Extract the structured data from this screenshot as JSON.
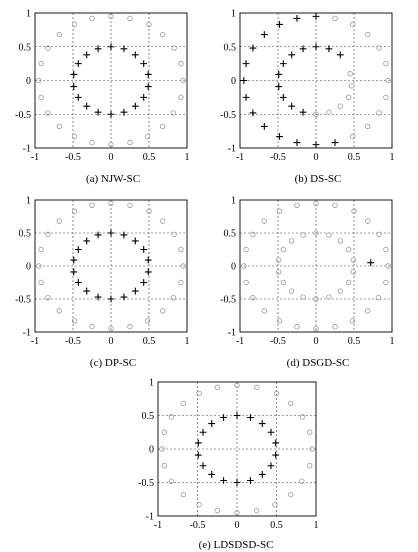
{
  "figure": {
    "panels": [
      {
        "caption": "(a) NJW-SC"
      },
      {
        "caption": "(b) DS-SC"
      },
      {
        "caption": "(c) DP-SC"
      },
      {
        "caption": "(d) DSGD-SC"
      },
      {
        "caption": "(e) LDSDSD-SC"
      }
    ]
  },
  "chart_data": [
    {
      "type": "scatter",
      "title": "(a) NJW-SC",
      "xlabel": "",
      "ylabel": "",
      "xlim": [
        -1,
        1
      ],
      "ylim": [
        -1,
        1
      ],
      "xticks": [
        "-1",
        "-0.5",
        "0",
        "0.5",
        "1"
      ],
      "yticks": [
        "1",
        "0.5",
        "0",
        "-0.5",
        "-1"
      ],
      "grid": true,
      "series": [
        {
          "marker": "circle",
          "color": "#9a9a9a",
          "points": [
            [
              0.0,
              0.95
            ],
            [
              0.25,
              0.92
            ],
            [
              0.5,
              0.83
            ],
            [
              0.68,
              0.68
            ],
            [
              0.83,
              0.48
            ],
            [
              0.92,
              0.25
            ],
            [
              0.95,
              0.0
            ],
            [
              0.92,
              -0.25
            ],
            [
              0.82,
              -0.48
            ],
            [
              0.68,
              -0.68
            ],
            [
              0.48,
              -0.83
            ],
            [
              0.25,
              -0.92
            ],
            [
              0.0,
              -0.95
            ],
            [
              -0.25,
              -0.92
            ],
            [
              -0.48,
              -0.83
            ],
            [
              -0.68,
              -0.68
            ],
            [
              -0.83,
              -0.48
            ],
            [
              -0.92,
              -0.25
            ],
            [
              -0.95,
              0.0
            ],
            [
              -0.92,
              0.25
            ],
            [
              -0.83,
              0.48
            ],
            [
              -0.68,
              0.68
            ],
            [
              -0.48,
              0.83
            ],
            [
              -0.25,
              0.92
            ]
          ]
        },
        {
          "marker": "plus",
          "color": "#000000",
          "points": [
            [
              0.0,
              0.5
            ],
            [
              0.17,
              0.47
            ],
            [
              0.32,
              0.38
            ],
            [
              0.43,
              0.25
            ],
            [
              0.49,
              0.09
            ],
            [
              0.49,
              -0.09
            ],
            [
              0.43,
              -0.25
            ],
            [
              0.32,
              -0.38
            ],
            [
              0.17,
              -0.47
            ],
            [
              0.0,
              -0.5
            ],
            [
              -0.17,
              -0.47
            ],
            [
              -0.32,
              -0.38
            ],
            [
              -0.43,
              -0.25
            ],
            [
              -0.49,
              -0.09
            ],
            [
              -0.49,
              0.09
            ],
            [
              -0.43,
              0.25
            ],
            [
              -0.32,
              0.38
            ],
            [
              -0.17,
              0.47
            ]
          ]
        }
      ]
    },
    {
      "type": "scatter",
      "title": "(b) DS-SC",
      "xlabel": "",
      "ylabel": "",
      "xlim": [
        -1,
        1
      ],
      "ylim": [
        -1,
        1
      ],
      "xticks": [
        "-1",
        "-0.5",
        "0",
        "0.5",
        "1"
      ],
      "yticks": [
        "1",
        "0.5",
        "0",
        "-0.5",
        "-1"
      ],
      "grid": true,
      "series": [
        {
          "marker": "circle",
          "color": "#9a9a9a",
          "points": [
            [
              0.25,
              0.92
            ],
            [
              0.48,
              0.83
            ],
            [
              0.68,
              0.68
            ],
            [
              0.83,
              0.48
            ],
            [
              0.92,
              0.25
            ],
            [
              0.95,
              0.0
            ],
            [
              0.92,
              -0.25
            ],
            [
              0.83,
              -0.48
            ],
            [
              0.68,
              -0.68
            ],
            [
              0.48,
              -0.83
            ],
            [
              0.45,
              0.1
            ],
            [
              0.47,
              -0.08
            ],
            [
              0.43,
              -0.25
            ],
            [
              0.32,
              -0.38
            ],
            [
              0.17,
              -0.47
            ],
            [
              0.0,
              -0.5
            ]
          ]
        },
        {
          "marker": "plus",
          "color": "#000000",
          "points": [
            [
              0.0,
              0.95
            ],
            [
              -0.25,
              0.92
            ],
            [
              -0.48,
              0.83
            ],
            [
              -0.68,
              0.68
            ],
            [
              -0.83,
              0.48
            ],
            [
              -0.92,
              0.25
            ],
            [
              -0.95,
              0.0
            ],
            [
              -0.92,
              -0.25
            ],
            [
              -0.83,
              -0.48
            ],
            [
              -0.68,
              -0.68
            ],
            [
              -0.48,
              -0.83
            ],
            [
              -0.25,
              -0.92
            ],
            [
              0.0,
              -0.95
            ],
            [
              0.25,
              -0.92
            ],
            [
              0.0,
              0.5
            ],
            [
              0.17,
              0.47
            ],
            [
              0.32,
              0.38
            ],
            [
              -0.17,
              0.47
            ],
            [
              -0.32,
              0.38
            ],
            [
              -0.43,
              0.25
            ],
            [
              -0.49,
              0.09
            ],
            [
              -0.49,
              -0.09
            ],
            [
              -0.43,
              -0.25
            ],
            [
              -0.32,
              -0.38
            ],
            [
              -0.17,
              -0.47
            ]
          ]
        }
      ]
    },
    {
      "type": "scatter",
      "title": "(c) DP-SC",
      "xlabel": "",
      "ylabel": "",
      "xlim": [
        -1,
        1
      ],
      "ylim": [
        -1,
        1
      ],
      "xticks": [
        "-1",
        "-0.5",
        "0",
        "0.5",
        "1"
      ],
      "yticks": [
        "1",
        "0.5",
        "0",
        "-0.5",
        "-1"
      ],
      "grid": true,
      "series": [
        {
          "marker": "circle",
          "color": "#9a9a9a",
          "points": [
            [
              0.0,
              0.95
            ],
            [
              0.25,
              0.92
            ],
            [
              0.5,
              0.83
            ],
            [
              0.68,
              0.68
            ],
            [
              0.83,
              0.48
            ],
            [
              0.92,
              0.25
            ],
            [
              0.95,
              0.0
            ],
            [
              0.92,
              -0.25
            ],
            [
              0.82,
              -0.48
            ],
            [
              0.68,
              -0.68
            ],
            [
              0.48,
              -0.83
            ],
            [
              0.25,
              -0.92
            ],
            [
              0.0,
              -0.95
            ],
            [
              -0.25,
              -0.92
            ],
            [
              -0.48,
              -0.83
            ],
            [
              -0.68,
              -0.68
            ],
            [
              -0.83,
              -0.48
            ],
            [
              -0.92,
              -0.25
            ],
            [
              -0.95,
              0.0
            ],
            [
              -0.92,
              0.25
            ],
            [
              -0.83,
              0.48
            ],
            [
              -0.68,
              0.68
            ],
            [
              -0.48,
              0.83
            ],
            [
              -0.25,
              0.92
            ]
          ]
        },
        {
          "marker": "plus",
          "color": "#000000",
          "points": [
            [
              0.0,
              0.5
            ],
            [
              0.17,
              0.47
            ],
            [
              0.32,
              0.38
            ],
            [
              0.43,
              0.25
            ],
            [
              0.49,
              0.09
            ],
            [
              0.49,
              -0.09
            ],
            [
              0.43,
              -0.25
            ],
            [
              0.32,
              -0.38
            ],
            [
              0.17,
              -0.47
            ],
            [
              0.0,
              -0.5
            ],
            [
              -0.17,
              -0.47
            ],
            [
              -0.32,
              -0.38
            ],
            [
              -0.43,
              -0.25
            ],
            [
              -0.49,
              -0.09
            ],
            [
              -0.49,
              0.09
            ],
            [
              -0.43,
              0.25
            ],
            [
              -0.32,
              0.38
            ],
            [
              -0.17,
              0.47
            ]
          ]
        }
      ]
    },
    {
      "type": "scatter",
      "title": "(d) DSGD-SC",
      "xlabel": "",
      "ylabel": "",
      "xlim": [
        -1,
        1
      ],
      "ylim": [
        -1,
        1
      ],
      "xticks": [
        "-1",
        "-0.5",
        "0",
        "0.5",
        "1"
      ],
      "yticks": [
        "1",
        "0.5",
        "0",
        "-0.5",
        "-1"
      ],
      "grid": true,
      "series": [
        {
          "marker": "circle",
          "color": "#9a9a9a",
          "points": [
            [
              0.0,
              0.95
            ],
            [
              0.25,
              0.92
            ],
            [
              0.5,
              0.83
            ],
            [
              0.68,
              0.68
            ],
            [
              0.83,
              0.48
            ],
            [
              0.92,
              0.25
            ],
            [
              0.95,
              0.0
            ],
            [
              0.92,
              -0.25
            ],
            [
              0.82,
              -0.48
            ],
            [
              0.68,
              -0.68
            ],
            [
              0.48,
              -0.83
            ],
            [
              0.25,
              -0.92
            ],
            [
              0.0,
              -0.95
            ],
            [
              -0.25,
              -0.92
            ],
            [
              -0.48,
              -0.83
            ],
            [
              -0.68,
              -0.68
            ],
            [
              -0.83,
              -0.48
            ],
            [
              -0.92,
              -0.25
            ],
            [
              -0.95,
              0.0
            ],
            [
              -0.92,
              0.25
            ],
            [
              -0.83,
              0.48
            ],
            [
              -0.68,
              0.68
            ],
            [
              -0.48,
              0.83
            ],
            [
              -0.25,
              0.92
            ],
            [
              0.0,
              0.5
            ],
            [
              0.17,
              0.47
            ],
            [
              0.32,
              0.38
            ],
            [
              0.43,
              0.25
            ],
            [
              0.49,
              0.09
            ],
            [
              0.49,
              -0.09
            ],
            [
              0.43,
              -0.25
            ],
            [
              0.32,
              -0.38
            ],
            [
              0.17,
              -0.47
            ],
            [
              0.0,
              -0.5
            ],
            [
              -0.17,
              -0.47
            ],
            [
              -0.32,
              -0.38
            ],
            [
              -0.43,
              -0.25
            ],
            [
              -0.49,
              -0.09
            ],
            [
              -0.49,
              0.09
            ],
            [
              -0.43,
              0.25
            ],
            [
              -0.32,
              0.38
            ],
            [
              -0.17,
              0.47
            ]
          ]
        },
        {
          "marker": "plus",
          "color": "#000000",
          "points": [
            [
              0.72,
              0.05
            ]
          ]
        }
      ]
    },
    {
      "type": "scatter",
      "title": "(e) LDSDSD-SC",
      "xlabel": "",
      "ylabel": "",
      "xlim": [
        -1,
        1
      ],
      "ylim": [
        -1,
        1
      ],
      "xticks": [
        "-1",
        "-0.5",
        "0",
        "0.5",
        "1"
      ],
      "yticks": [
        "1",
        "0.5",
        "0",
        "-0.5",
        "-1"
      ],
      "grid": true,
      "series": [
        {
          "marker": "circle",
          "color": "#9a9a9a",
          "points": [
            [
              0.0,
              0.95
            ],
            [
              0.25,
              0.92
            ],
            [
              0.5,
              0.83
            ],
            [
              0.68,
              0.68
            ],
            [
              0.83,
              0.48
            ],
            [
              0.92,
              0.25
            ],
            [
              0.95,
              0.0
            ],
            [
              0.92,
              -0.25
            ],
            [
              0.82,
              -0.48
            ],
            [
              0.68,
              -0.68
            ],
            [
              0.48,
              -0.83
            ],
            [
              0.25,
              -0.92
            ],
            [
              0.0,
              -0.95
            ],
            [
              -0.25,
              -0.92
            ],
            [
              -0.48,
              -0.83
            ],
            [
              -0.68,
              -0.68
            ],
            [
              -0.83,
              -0.48
            ],
            [
              -0.92,
              -0.25
            ],
            [
              -0.95,
              0.0
            ],
            [
              -0.92,
              0.25
            ],
            [
              -0.83,
              0.48
            ],
            [
              -0.68,
              0.68
            ],
            [
              -0.48,
              0.83
            ],
            [
              -0.25,
              0.92
            ]
          ]
        },
        {
          "marker": "plus",
          "color": "#000000",
          "points": [
            [
              0.0,
              0.5
            ],
            [
              0.17,
              0.47
            ],
            [
              0.32,
              0.38
            ],
            [
              0.43,
              0.25
            ],
            [
              0.49,
              0.09
            ],
            [
              0.49,
              -0.09
            ],
            [
              0.43,
              -0.25
            ],
            [
              0.32,
              -0.38
            ],
            [
              0.17,
              -0.47
            ],
            [
              0.0,
              -0.5
            ],
            [
              -0.17,
              -0.47
            ],
            [
              -0.32,
              -0.38
            ],
            [
              -0.43,
              -0.25
            ],
            [
              -0.49,
              -0.09
            ],
            [
              -0.49,
              0.09
            ],
            [
              -0.43,
              0.25
            ],
            [
              -0.32,
              0.38
            ],
            [
              -0.17,
              0.47
            ]
          ]
        }
      ]
    }
  ]
}
